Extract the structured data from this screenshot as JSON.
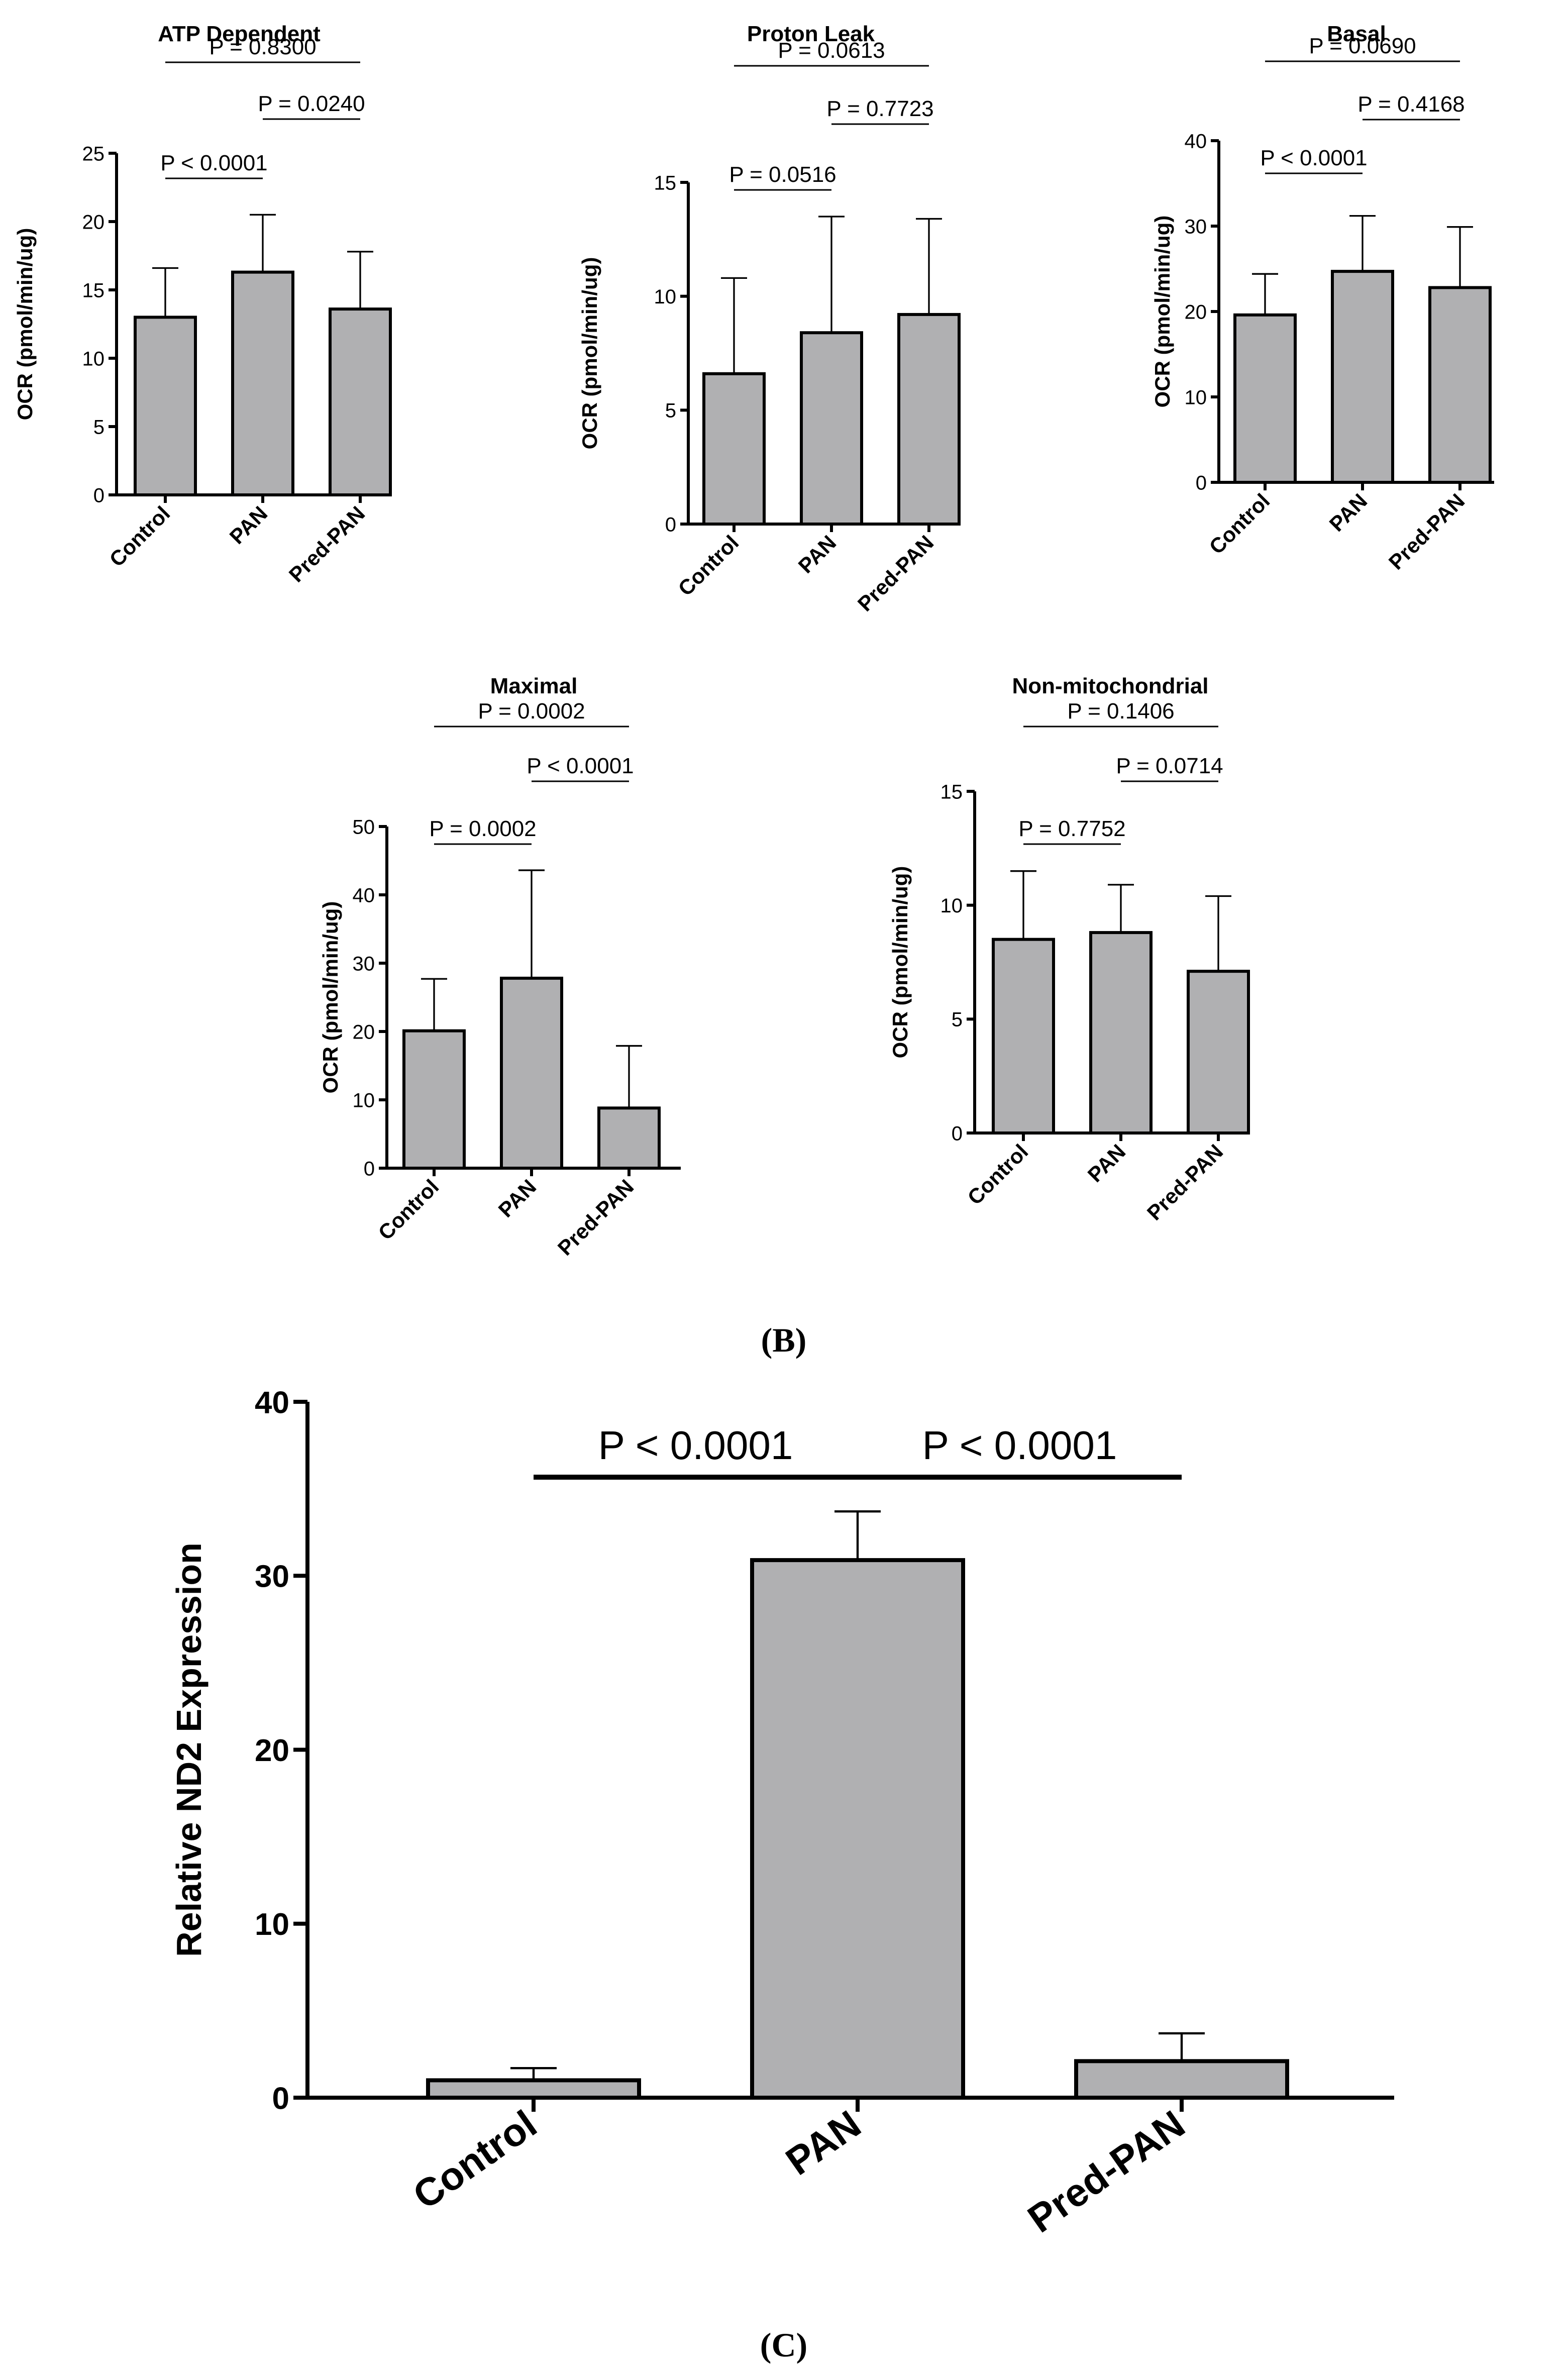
{
  "colors": {
    "bar_fill": "#b0b0b2",
    "axis": "#000000",
    "bar_stroke": "#000000"
  },
  "panel_labels": {
    "b": "(B)",
    "c": "(C)"
  },
  "chart_data": [
    {
      "id": "atp",
      "type": "bar",
      "title": "ATP Dependent",
      "ylabel": "OCR (pmol/min/ug)",
      "xlabel": "",
      "categories": [
        "Control",
        "PAN",
        "Pred-PAN"
      ],
      "values": [
        13.0,
        16.3,
        13.6
      ],
      "errors": [
        3.6,
        4.2,
        4.2
      ],
      "ylim": [
        0,
        25
      ],
      "yticks": [
        0,
        5,
        10,
        15,
        20,
        25
      ],
      "significance": [
        {
          "from": 0,
          "to": 1,
          "label": "P < 0.0001"
        },
        {
          "from": 1,
          "to": 2,
          "label": "P = 0.0240"
        },
        {
          "from": 0,
          "to": 2,
          "label": "P = 0.8300"
        }
      ]
    },
    {
      "id": "proton",
      "type": "bar",
      "title": "Proton Leak",
      "ylabel": "OCR (pmol/min/ug)",
      "xlabel": "",
      "categories": [
        "Control",
        "PAN",
        "Pred-PAN"
      ],
      "values": [
        6.6,
        8.4,
        9.2
      ],
      "errors": [
        4.2,
        5.1,
        4.2
      ],
      "ylim": [
        0,
        15
      ],
      "yticks": [
        0,
        5,
        10,
        15
      ],
      "significance": [
        {
          "from": 0,
          "to": 1,
          "label": "P = 0.0516"
        },
        {
          "from": 1,
          "to": 2,
          "label": "P = 0.7723"
        },
        {
          "from": 0,
          "to": 2,
          "label": "P = 0.0613"
        }
      ]
    },
    {
      "id": "basal",
      "type": "bar",
      "title": "Basal",
      "ylabel": "OCR (pmol/min/ug)",
      "xlabel": "",
      "categories": [
        "Control",
        "PAN",
        "Pred-PAN"
      ],
      "values": [
        19.6,
        24.7,
        22.8
      ],
      "errors": [
        4.8,
        6.5,
        7.1
      ],
      "ylim": [
        0,
        40
      ],
      "yticks": [
        0,
        10,
        20,
        30,
        40
      ],
      "significance": [
        {
          "from": 0,
          "to": 1,
          "label": "P < 0.0001"
        },
        {
          "from": 1,
          "to": 2,
          "label": "P = 0.4168"
        },
        {
          "from": 0,
          "to": 2,
          "label": "P = 0.0690"
        }
      ]
    },
    {
      "id": "maximal",
      "type": "bar",
      "title": "Maximal",
      "ylabel": "OCR (pmol/min/ug)",
      "xlabel": "",
      "categories": [
        "Control",
        "PAN",
        "Pred-PAN"
      ],
      "values": [
        20.1,
        27.8,
        8.8
      ],
      "errors": [
        7.6,
        15.8,
        9.1
      ],
      "ylim": [
        0,
        50
      ],
      "yticks": [
        0,
        10,
        20,
        30,
        40,
        50
      ],
      "significance": [
        {
          "from": 0,
          "to": 1,
          "label": "P = 0.0002"
        },
        {
          "from": 1,
          "to": 2,
          "label": "P < 0.0001"
        },
        {
          "from": 0,
          "to": 2,
          "label": "P = 0.0002"
        }
      ]
    },
    {
      "id": "nonmito",
      "type": "bar",
      "title": "Non-mitochondrial",
      "ylabel": "OCR (pmol/min/ug)",
      "xlabel": "",
      "categories": [
        "Control",
        "PAN",
        "Pred-PAN"
      ],
      "values": [
        8.5,
        8.8,
        7.1
      ],
      "errors": [
        3.0,
        2.1,
        3.3
      ],
      "ylim": [
        0,
        15
      ],
      "yticks": [
        0,
        5,
        10,
        15
      ],
      "significance": [
        {
          "from": 0,
          "to": 1,
          "label": "P = 0.7752"
        },
        {
          "from": 1,
          "to": 2,
          "label": "P = 0.0714"
        },
        {
          "from": 0,
          "to": 2,
          "label": "P = 0.1406"
        }
      ]
    },
    {
      "id": "nd2",
      "type": "bar",
      "title": "",
      "ylabel": "Relative ND2 Expression",
      "xlabel": "",
      "categories": [
        "Control",
        "PAN",
        "Pred-PAN"
      ],
      "values": [
        1.0,
        30.9,
        2.1
      ],
      "errors": [
        0.7,
        2.8,
        1.6
      ],
      "ylim": [
        0,
        40
      ],
      "yticks": [
        0,
        10,
        20,
        30,
        40
      ],
      "significance": [
        {
          "from": 0,
          "to": 1,
          "label": "P < 0.0001"
        },
        {
          "from": 1,
          "to": 2,
          "label": "P < 0.0001"
        }
      ]
    }
  ]
}
